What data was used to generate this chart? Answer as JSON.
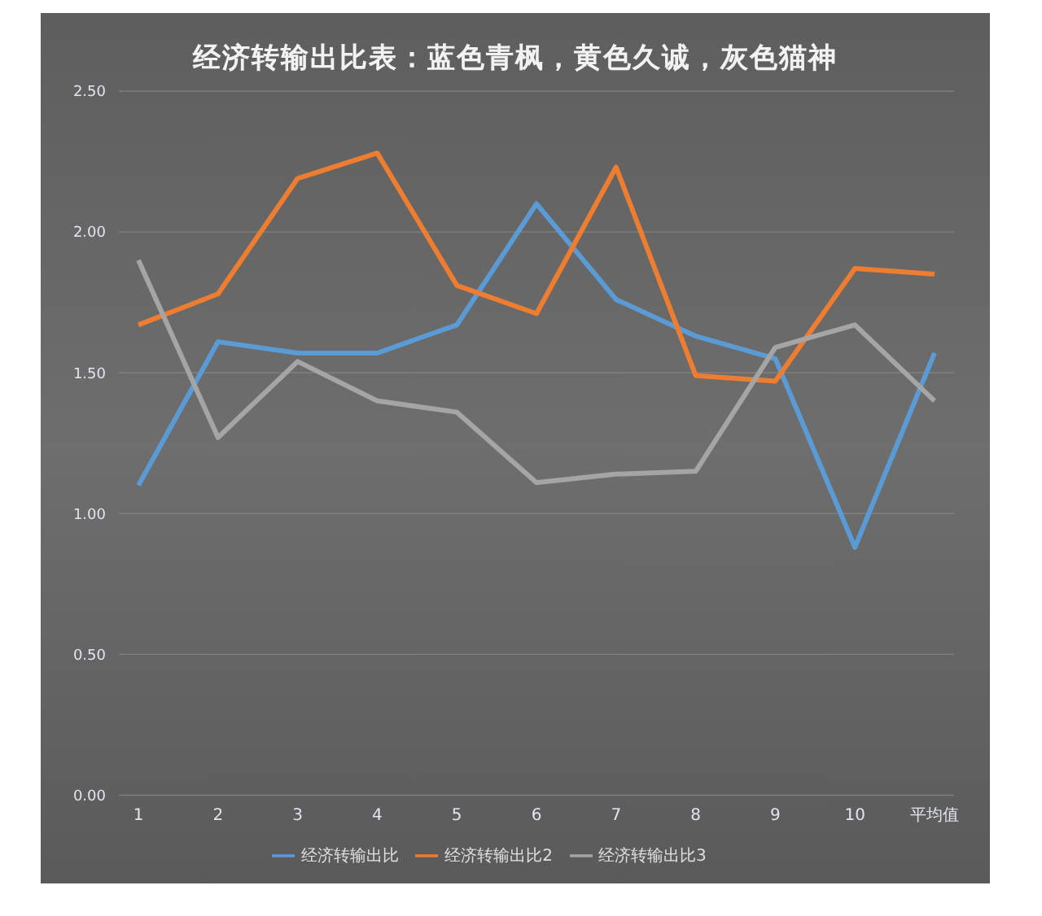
{
  "chart_data": {
    "type": "line",
    "title": "经济转输出比表：蓝色青枫，黄色久诚，灰色猫神",
    "categories": [
      "1",
      "2",
      "3",
      "4",
      "5",
      "6",
      "7",
      "8",
      "9",
      "10",
      "平均值"
    ],
    "series": [
      {
        "name": "经济转输出比",
        "color": "#5b9bd5",
        "values": [
          1.1,
          1.61,
          1.57,
          1.57,
          1.67,
          2.1,
          1.76,
          1.63,
          1.55,
          0.88,
          1.57
        ]
      },
      {
        "name": "经济转输出比2",
        "color": "#ed7d31",
        "values": [
          1.67,
          1.78,
          2.19,
          2.28,
          1.81,
          1.71,
          2.23,
          1.49,
          1.47,
          1.87,
          1.85
        ]
      },
      {
        "name": "经济转输出比3",
        "color": "#a5a5a5",
        "values": [
          1.9,
          1.27,
          1.54,
          1.4,
          1.36,
          1.11,
          1.14,
          1.15,
          1.59,
          1.67,
          1.4
        ]
      }
    ],
    "ylim": [
      0,
      2.5
    ],
    "yticks": [
      {
        "value": 0,
        "label": "0.00"
      },
      {
        "value": 0.5,
        "label": "0.50"
      },
      {
        "value": 1,
        "label": "1.00"
      },
      {
        "value": 1.5,
        "label": "1.50"
      },
      {
        "value": 2,
        "label": "2.00"
      },
      {
        "value": 2.5,
        "label": "2.50"
      }
    ],
    "grid": "y",
    "legend": "bottom",
    "marker": "none",
    "line_style": "solid"
  }
}
